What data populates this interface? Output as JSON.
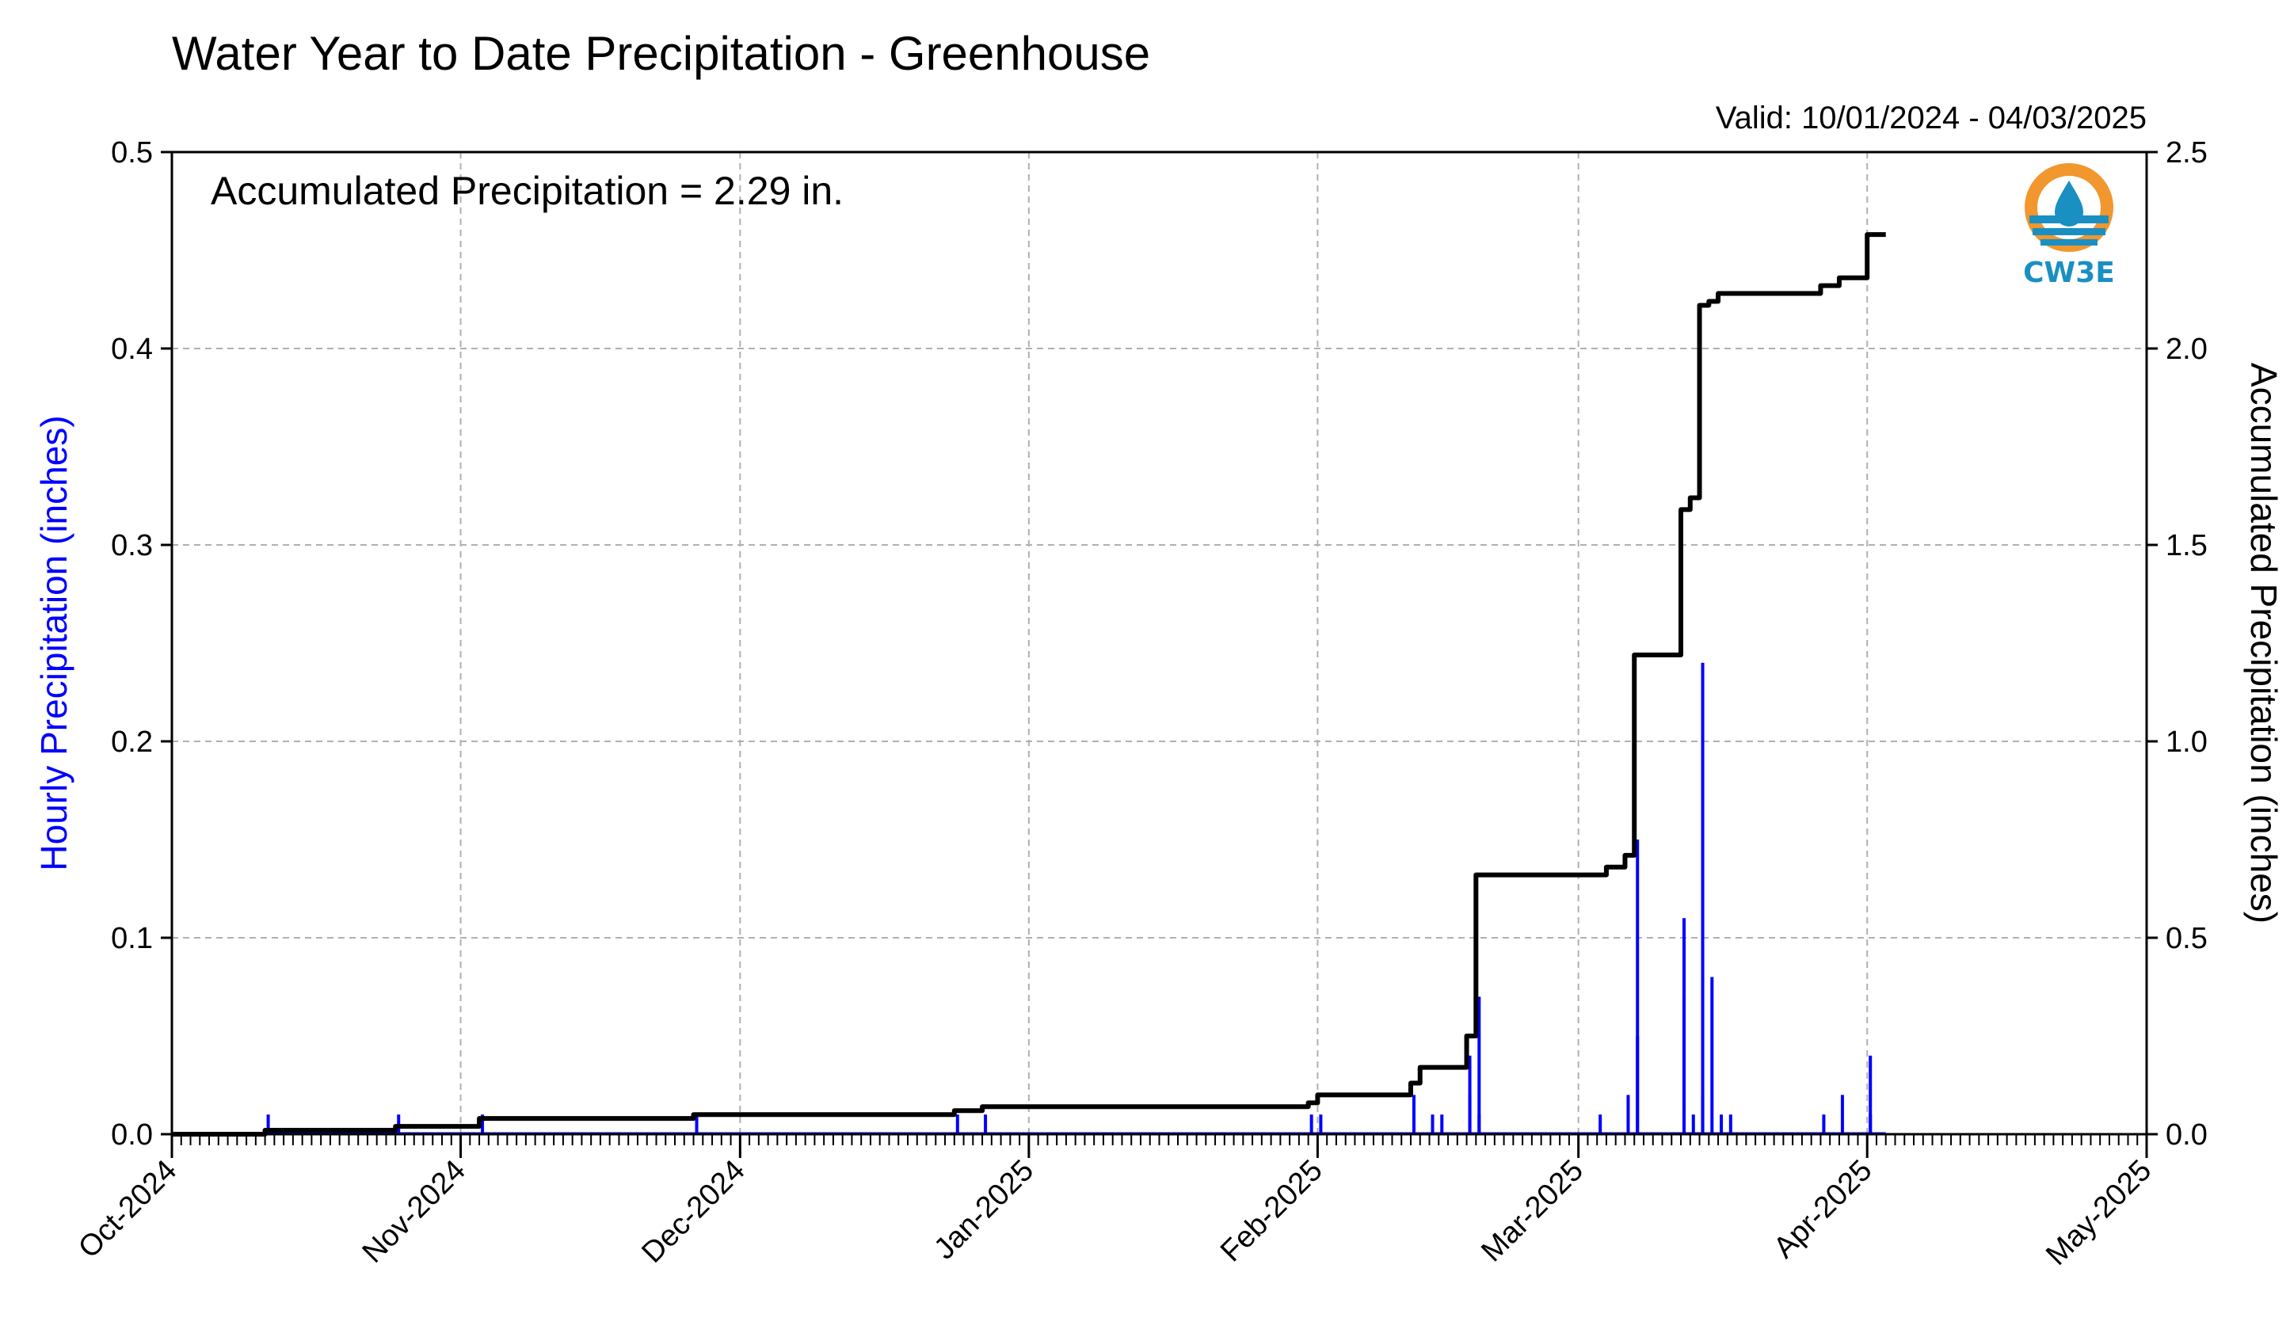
{
  "title": "Water Year to Date Precipitation - Greenhouse",
  "valid_text": "Valid: 10/01/2024 - 04/03/2025",
  "annotation": "Accumulated Precipitation = 2.29 in.",
  "logo": {
    "text": "CW3E",
    "colors": {
      "ring": "#f2962e",
      "waves": "#1a8fc2",
      "text": "#1a8fc2"
    }
  },
  "colors": {
    "hourly": "#0000ff",
    "accumulated": "#000000",
    "grid": "#b0b0b0"
  },
  "chart_data": {
    "type": "bar+line",
    "title": "Water Year to Date Precipitation - Greenhouse",
    "x_range": [
      "2024-10-01",
      "2025-05-01"
    ],
    "x_tick_labels": [
      "Oct-2024",
      "Nov-2024",
      "Dec-2024",
      "Jan-2025",
      "Feb-2025",
      "Mar-2025",
      "Apr-2025",
      "May-2025"
    ],
    "ylabel": "Hourly Precipitation (inches)",
    "ylim": [
      0,
      0.5
    ],
    "y_ticks": [
      "0.0",
      "0.1",
      "0.2",
      "0.3",
      "0.4",
      "0.5"
    ],
    "y2label": "Accumulated Precipitation (inches)",
    "y2lim": [
      0,
      2.5
    ],
    "y2_ticks": [
      "0.0",
      "0.5",
      "1.0",
      "1.5",
      "2.0",
      "2.5"
    ],
    "grid": true,
    "series": [
      {
        "name": "Hourly Precipitation",
        "axis": "left",
        "type": "bar",
        "points": [
          [
            "2024-10-11",
            0.01
          ],
          [
            "2024-10-25",
            0.01
          ],
          [
            "2024-11-03",
            0.01
          ],
          [
            "2024-11-26",
            0.01
          ],
          [
            "2024-12-24",
            0.01
          ],
          [
            "2024-12-27",
            0.01
          ],
          [
            "2025-01-31",
            0.01
          ],
          [
            "2025-02-01",
            0.01
          ],
          [
            "2025-02-11",
            0.01
          ],
          [
            "2025-02-11",
            0.02
          ],
          [
            "2025-02-13",
            0.01
          ],
          [
            "2025-02-14",
            0.01
          ],
          [
            "2025-02-17",
            0.04
          ],
          [
            "2025-02-17",
            0.02
          ],
          [
            "2025-02-18",
            0.07
          ],
          [
            "2025-02-18",
            0.01
          ],
          [
            "2025-03-03",
            0.01
          ],
          [
            "2025-03-06",
            0.02
          ],
          [
            "2025-03-07",
            0.15
          ],
          [
            "2025-03-07",
            0.05
          ],
          [
            "2025-03-12",
            0.11
          ],
          [
            "2025-03-12",
            0.07
          ],
          [
            "2025-03-13",
            0.01
          ],
          [
            "2025-03-14",
            0.24
          ],
          [
            "2025-03-14",
            0.02
          ],
          [
            "2025-03-15",
            0.08
          ],
          [
            "2025-03-16",
            0.01
          ],
          [
            "2025-03-17",
            0.01
          ],
          [
            "2025-03-27",
            0.01
          ],
          [
            "2025-03-29",
            0.02
          ],
          [
            "2025-04-01",
            0.04
          ],
          [
            "2025-04-01",
            0.01
          ]
        ]
      },
      {
        "name": "Accumulated Precipitation",
        "axis": "right",
        "type": "step",
        "points": [
          [
            "2024-10-01",
            0.0
          ],
          [
            "2024-10-11",
            0.01
          ],
          [
            "2024-10-25",
            0.02
          ],
          [
            "2024-11-03",
            0.04
          ],
          [
            "2024-11-26",
            0.05
          ],
          [
            "2024-12-24",
            0.06
          ],
          [
            "2024-12-27",
            0.07
          ],
          [
            "2025-01-31",
            0.08
          ],
          [
            "2025-02-01",
            0.1
          ],
          [
            "2025-02-11",
            0.13
          ],
          [
            "2025-02-12",
            0.17
          ],
          [
            "2025-02-17",
            0.21
          ],
          [
            "2025-02-17",
            0.25
          ],
          [
            "2025-02-18",
            0.3
          ],
          [
            "2025-02-18",
            0.66
          ],
          [
            "2025-03-03",
            0.66
          ],
          [
            "2025-03-04",
            0.68
          ],
          [
            "2025-03-06",
            0.71
          ],
          [
            "2025-03-07",
            0.76
          ],
          [
            "2025-03-07",
            1.22
          ],
          [
            "2025-03-12",
            1.22
          ],
          [
            "2025-03-12",
            1.59
          ],
          [
            "2025-03-13",
            1.62
          ],
          [
            "2025-03-14",
            2.0
          ],
          [
            "2025-03-14",
            2.11
          ],
          [
            "2025-03-15",
            2.12
          ],
          [
            "2025-03-16",
            2.14
          ],
          [
            "2025-03-27",
            2.14
          ],
          [
            "2025-03-27",
            2.16
          ],
          [
            "2025-03-29",
            2.18
          ],
          [
            "2025-04-01",
            2.18
          ],
          [
            "2025-04-01",
            2.24
          ],
          [
            "2025-04-01",
            2.29
          ],
          [
            "2025-04-03",
            2.29
          ]
        ]
      }
    ]
  }
}
